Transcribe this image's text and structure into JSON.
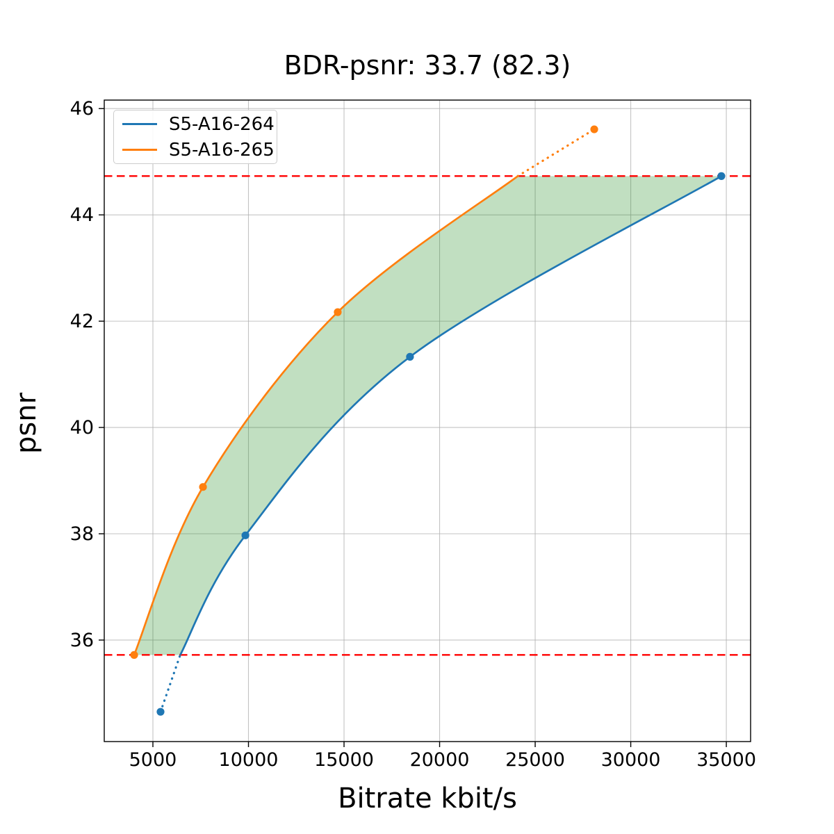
{
  "chart_data": {
    "type": "line",
    "title": "BDR-psnr: 33.7 (82.3)",
    "xlabel": "Bitrate kbit/s",
    "ylabel": "psnr",
    "xlim": [
      2455,
      36270
    ],
    "ylim": [
      34.09,
      46.16
    ],
    "xticks": [
      5000,
      10000,
      15000,
      20000,
      25000,
      30000,
      35000
    ],
    "yticks": [
      36,
      38,
      40,
      42,
      44,
      46
    ],
    "grid": true,
    "grid_color": "#b0b0b0",
    "legend_position": "upper left",
    "series": [
      {
        "name": "S5-A16-264",
        "color": "#1f77b4",
        "points": [
          [
            5400,
            34.65
          ],
          [
            9840,
            37.97
          ],
          [
            18450,
            41.33
          ],
          [
            34740,
            44.73
          ]
        ]
      },
      {
        "name": "S5-A16-265",
        "color": "#ff7f0e",
        "points": [
          [
            4020,
            35.72
          ],
          [
            7620,
            38.88
          ],
          [
            14670,
            42.17
          ],
          [
            28090,
            45.61
          ]
        ]
      }
    ],
    "overlap_lines": {
      "color": "#ff0000",
      "style": "dashed",
      "low": 35.72,
      "high": 44.73
    },
    "crossings": {
      "series0_at_low": 6430,
      "series1_at_high": 24090
    },
    "fill_between": {
      "color": "rgba(34,139,34,0.28)",
      "range_psnr": [
        35.72,
        44.73
      ]
    }
  }
}
